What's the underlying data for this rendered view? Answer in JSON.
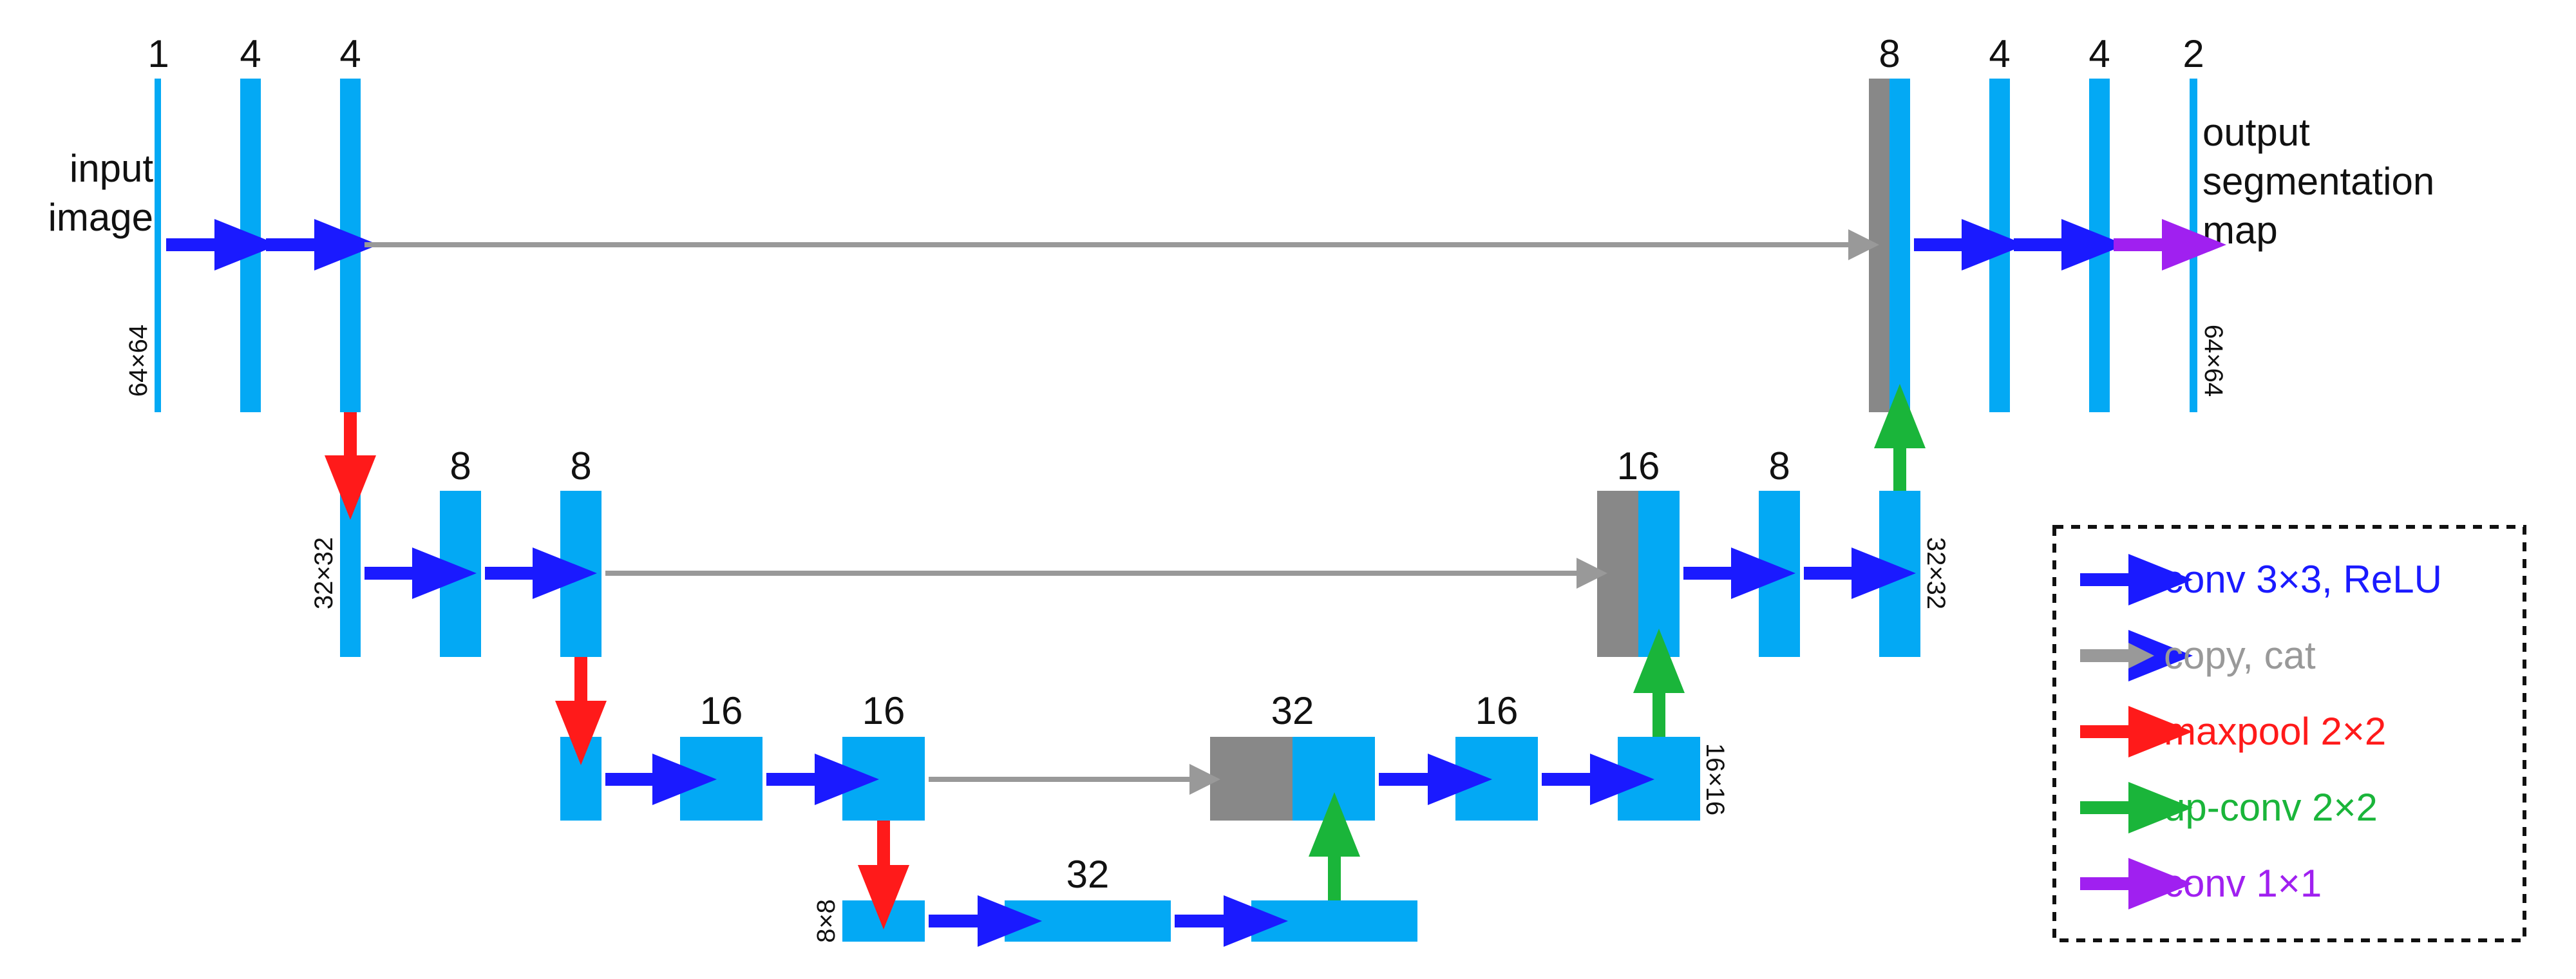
{
  "colors": {
    "block": "#03a9f4",
    "concat": "#888888",
    "conv": "#1a1aff",
    "copy": "#999999",
    "maxpool": "#ff1a1a",
    "upconv": "#1ab53a",
    "conv1x1": "#a020f0",
    "text": "#111111",
    "legend_border": "#111111"
  },
  "labels": {
    "input": [
      "input",
      "image"
    ],
    "output": [
      "output",
      "segmentation",
      "map"
    ],
    "res_64": "64×64",
    "res_32": "32×32",
    "res_16": "16×16",
    "res_8": "8×8"
  },
  "channels": {
    "l1_in": "1",
    "l1_a": "4",
    "l1_b": "4",
    "l2_a": "8",
    "l2_b": "8",
    "l3_a": "16",
    "l3_b": "16",
    "l4_a": "32",
    "l3_up": "32",
    "l3_c": "16",
    "l2_up": "16",
    "l2_c": "8",
    "l1_up": "8",
    "l1_c": "4",
    "l1_d": "4",
    "l1_out": "2"
  },
  "legend": [
    {
      "label": "conv 3×3, ReLU",
      "icon": "blue-arrow",
      "color": "#1a1aff"
    },
    {
      "label": "copy, cat",
      "icon": "gray-arrow",
      "color": "#999999"
    },
    {
      "label": "maxpool 2×2",
      "icon": "red-arrow",
      "color": "#ff1a1a"
    },
    {
      "label": "up-conv 2×2",
      "icon": "green-arrow",
      "color": "#1ab53a"
    },
    {
      "label": "conv 1×1",
      "icon": "purple-arrow",
      "color": "#a020f0"
    }
  ]
}
